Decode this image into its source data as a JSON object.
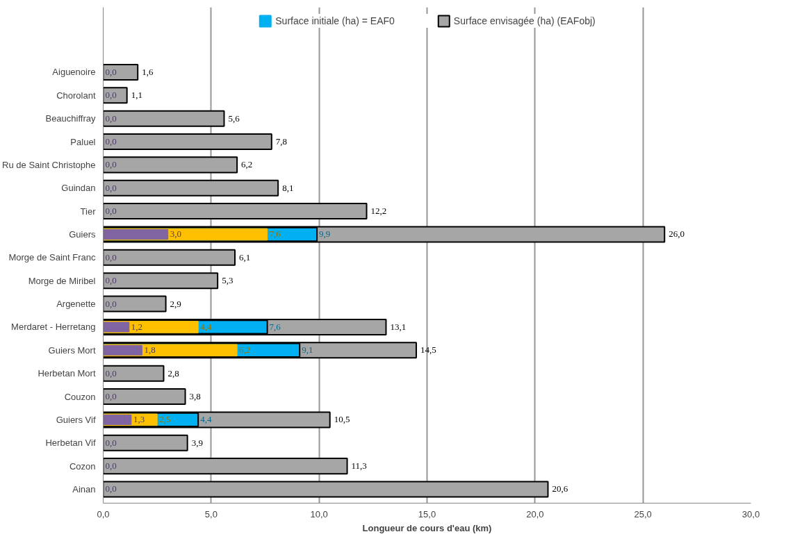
{
  "chart_data": {
    "type": "bar",
    "orientation": "horizontal",
    "xlabel": "Longueur de cours d'eau (km)",
    "categories": [
      "Aiguenoire",
      "Chorolant",
      "Beauchiffray",
      "Paluel",
      "Ru de Saint Christophe",
      "Guindan",
      "Tier",
      "Guiers",
      "Morge de Saint Franc",
      "Morge de Miribel",
      "Argenette",
      "Merdaret - Herretang",
      "Guiers Mort",
      "Herbetan Mort",
      "Couzon",
      "Guiers Vif",
      "Herbetan Vif",
      "Cozon",
      "Ainan"
    ],
    "series": [
      {
        "color": "#8064a2",
        "values": [
          0,
          0,
          0,
          0,
          0,
          0,
          0,
          3.0,
          0,
          0,
          0,
          1.2,
          1.8,
          0,
          0,
          1.3,
          0,
          0,
          0
        ],
        "value_labels": [
          "0,0",
          "0,0",
          "0,0",
          "0,0",
          "0,0",
          "0,0",
          "0,0",
          "3,0",
          "0,0",
          "0,0",
          "0,0",
          "1,2",
          "1,8",
          "0,0",
          "0,0",
          "1,3",
          "0,0",
          "0,0",
          "0,0"
        ]
      },
      {
        "color": "#ffc000",
        "values": [
          0,
          0,
          0,
          0,
          0,
          0,
          0,
          7.6,
          0,
          0,
          0,
          4.4,
          6.2,
          0,
          0,
          2.5,
          0,
          0,
          0
        ],
        "value_labels": [
          null,
          null,
          null,
          null,
          null,
          null,
          null,
          "7,6",
          null,
          null,
          null,
          "4,4",
          "6,2",
          null,
          null,
          "2,5",
          null,
          null,
          null
        ]
      },
      {
        "name": "Surface initiale (ha) = EAF0",
        "color": "#00b0f0",
        "values": [
          0,
          0,
          0,
          0,
          0,
          0,
          0,
          9.9,
          0,
          0,
          0,
          7.6,
          9.1,
          0,
          0,
          4.4,
          0,
          0,
          0
        ],
        "value_labels": [
          null,
          null,
          null,
          null,
          null,
          null,
          null,
          "9,9",
          null,
          null,
          null,
          "7,6",
          "9,1",
          null,
          null,
          "4,4",
          null,
          null,
          null
        ]
      },
      {
        "name": "Surface envisagée (ha) (EAFobj)",
        "color": "#a6a6a6",
        "values": [
          1.6,
          1.1,
          5.6,
          7.8,
          6.2,
          8.1,
          12.2,
          26.0,
          6.1,
          5.3,
          2.9,
          13.1,
          14.5,
          2.8,
          3.8,
          10.5,
          3.9,
          11.3,
          20.6
        ],
        "value_labels": [
          "1,6",
          "1,1",
          "5,6",
          "7,8",
          "6,2",
          "8,1",
          "12,2",
          "26,0",
          "6,1",
          "5,3",
          "2,9",
          "13,1",
          "14,5",
          "2,8",
          "3,8",
          "10,5",
          "3,9",
          "11,3",
          "20,6"
        ]
      }
    ],
    "xlim": [
      0,
      30
    ],
    "xticks": [
      {
        "value": 0,
        "label": "0,0"
      },
      {
        "value": 5,
        "label": "5,0"
      },
      {
        "value": 10,
        "label": "10,0"
      },
      {
        "value": 15,
        "label": "15,0"
      },
      {
        "value": 20,
        "label": "20,0"
      },
      {
        "value": 25,
        "label": "25,0"
      },
      {
        "value": 30,
        "label": "30,0"
      }
    ],
    "grid": "x",
    "legend": "top"
  }
}
